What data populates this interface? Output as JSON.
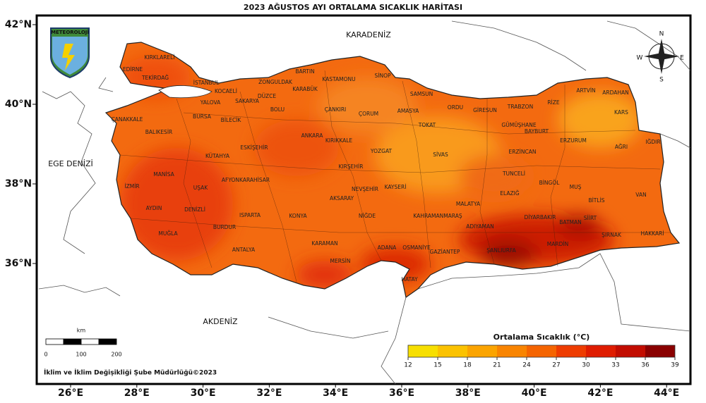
{
  "map": {
    "title": "2023 AĞUSTOS AYI ORTALAMA SICAKLIK HARİTASI",
    "latitude_labels": [
      "42°N",
      "40°N",
      "38°N",
      "36°N"
    ],
    "longitude_labels": [
      "26°E",
      "28°E",
      "30°E",
      "32°E",
      "34°E",
      "36°E",
      "38°E",
      "40°E",
      "42°E",
      "44°E"
    ],
    "seas": [
      "KARADENİZ",
      "EGE DENİZİ",
      "AKDENİZ"
    ],
    "logo_text": "METEOROLOJİ",
    "compass": [
      "N",
      "E",
      "S",
      "W"
    ],
    "provinces": [
      "KIRKLARELİ",
      "EDİRNE",
      "TEKİRDAĞ",
      "İSTANBUL",
      "KOCAELİ",
      "ZONGULDAK",
      "BARTIN",
      "KASTAMONU",
      "SİNOP",
      "SAMSUN",
      "ORDU",
      "GİRESUN",
      "TRABZON",
      "RİZE",
      "ARTVİN",
      "ARDAHAN",
      "KARS",
      "KARABÜK",
      "DÜZCE",
      "SAKARYA",
      "YALOVA",
      "BOLU",
      "ÇANKIRI",
      "ÇORUM",
      "AMASYA",
      "TOKAT",
      "GÜMÜŞHANE",
      "BAYBURT",
      "ERZURUM",
      "AĞRI",
      "IĞDIR",
      "ÇANAKKALE",
      "BURSA",
      "BİLECİK",
      "BALIKESİR",
      "ESKİŞEHİR",
      "ANKARA",
      "KIRIKKALE",
      "YOZGAT",
      "SİVAS",
      "ERZİNCAN",
      "KÜTAHYA",
      "MANİSA",
      "KIRŞEHİR",
      "TUNCELİ",
      "BİNGÖL",
      "MUŞ",
      "İZMİR",
      "UŞAK",
      "AFYONKARAHİSAR",
      "NEVŞEHİR",
      "KAYSERİ",
      "ELAZIĞ",
      "VAN",
      "AKSARAY",
      "BİTLİS",
      "AYDIN",
      "DENİZLİ",
      "ISPARTA",
      "KONYA",
      "NİĞDE",
      "KAHRAMANMARAŞ",
      "MALATYA",
      "DİYARBAKIR",
      "BATMAN",
      "SİİRT",
      "HAKKARİ",
      "ŞIRNAK",
      "MUĞLA",
      "BURDUR",
      "ADIYAMAN",
      "MARDİN",
      "ŞANLIURFA",
      "KARAMAN",
      "OSMANİYE",
      "ADANA",
      "GAZİANTEP",
      "ANTALYA",
      "MERSİN",
      "HATAY"
    ],
    "legend": {
      "title": "Ortalama Sıcaklık (°C)",
      "ticks": [
        12,
        15,
        18,
        21,
        24,
        27,
        30,
        33,
        36,
        39
      ],
      "colors": [
        "#f7df00",
        "#fbc200",
        "#fba400",
        "#f98400",
        "#f56400",
        "#ee3c00",
        "#df1c00",
        "#c20c00",
        "#8a0000"
      ]
    },
    "scale": {
      "unit": "km",
      "ticks": [
        0,
        100,
        200
      ]
    },
    "credit": "İklim ve İklim Değişikliği Şube Müdürlüğü©2023"
  }
}
